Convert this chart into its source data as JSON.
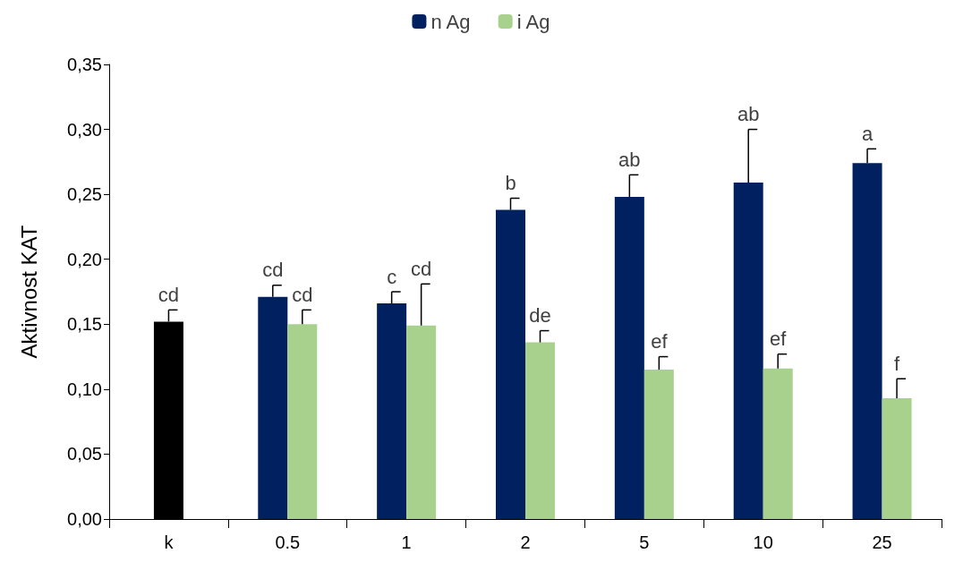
{
  "chart_data": {
    "type": "bar",
    "ylabel": "Aktivnost KAT",
    "categories": [
      "k",
      "0.5",
      "1",
      "2",
      "5",
      "10",
      "25"
    ],
    "series": [
      {
        "color": "#000000",
        "values": [
          0.152,
          null,
          null,
          null,
          null,
          null,
          null
        ],
        "errors": [
          0.009,
          null,
          null,
          null,
          null,
          null,
          null
        ],
        "value_labels": [
          "cd",
          null,
          null,
          null,
          null,
          null,
          null
        ]
      },
      {
        "name": "n Ag",
        "color": "#002060",
        "values": [
          null,
          0.171,
          0.166,
          0.238,
          0.248,
          0.259,
          0.274
        ],
        "errors": [
          null,
          0.009,
          0.009,
          0.009,
          0.017,
          0.041,
          0.011
        ],
        "value_labels": [
          null,
          "cd",
          "c",
          "b",
          "ab",
          "ab",
          "a"
        ]
      },
      {
        "name": "i Ag",
        "color": "#a9d18e",
        "values": [
          null,
          0.15,
          0.149,
          0.136,
          0.115,
          0.116,
          0.093
        ],
        "errors": [
          null,
          0.011,
          0.032,
          0.009,
          0.01,
          0.011,
          0.015
        ],
        "value_labels": [
          null,
          "cd",
          "cd",
          "de",
          "ef",
          "ef",
          "f"
        ]
      }
    ],
    "ylim": [
      0,
      0.35
    ],
    "yticks": [
      {
        "value": 0,
        "label": "0,00"
      },
      {
        "value": 0.05,
        "label": "0,05"
      },
      {
        "value": 0.1,
        "label": "0,10"
      },
      {
        "value": 0.15,
        "label": "0,15"
      },
      {
        "value": 0.2,
        "label": "0,20"
      },
      {
        "value": 0.25,
        "label": "0,25"
      },
      {
        "value": 0.3,
        "label": "0,30"
      },
      {
        "value": 0.35,
        "label": "0,35"
      }
    ],
    "grid": false,
    "legend": "top"
  }
}
